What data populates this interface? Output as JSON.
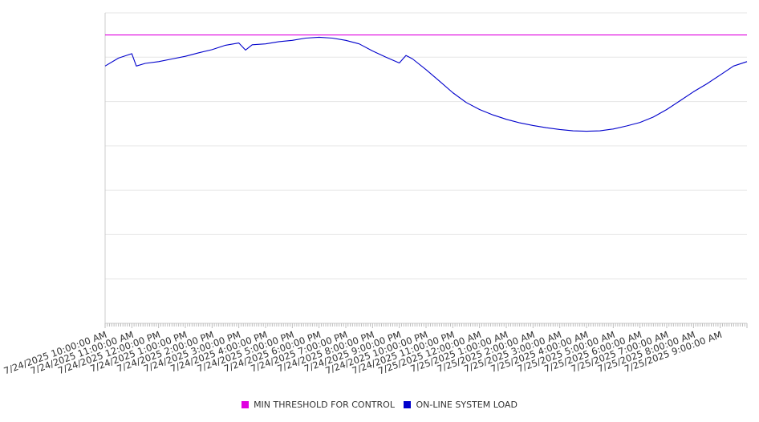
{
  "chart_data": {
    "type": "line",
    "title": "",
    "xlabel": "",
    "ylabel": "",
    "x_tick_labels": [
      "7/24/2025 10:00:00 AM",
      "7/24/2025 11:00:00 AM",
      "7/24/2025 12:00:00 PM",
      "7/24/2025 1:00:00 PM",
      "7/24/2025 2:00:00 PM",
      "7/24/2025 3:00:00 PM",
      "7/24/2025 4:00:00 PM",
      "7/24/2025 5:00:00 PM",
      "7/24/2025 6:00:00 PM",
      "7/24/2025 7:00:00 PM",
      "7/24/2025 8:00:00 PM",
      "7/24/2025 9:00:00 PM",
      "7/24/2025 10:00:00 PM",
      "7/24/2025 11:00:00 PM",
      "7/25/2025 12:00:00 AM",
      "7/25/2025 1:00:00 AM",
      "7/25/2025 2:00:00 AM",
      "7/25/2025 3:00:00 AM",
      "7/25/2025 4:00:00 AM",
      "7/25/2025 5:00:00 AM",
      "7/25/2025 6:00:00 AM",
      "7/25/2025 7:00:00 AM",
      "7/25/2025 8:00:00 AM",
      "7/25/2025 9:00:00 AM"
    ],
    "x_range": [
      "7/24/2025 10:00:00 AM",
      "7/25/2025 10:00:00 AM"
    ],
    "y_range": [
      0,
      7
    ],
    "y_tick_labels_shown": false,
    "grid": true,
    "legend_position": "bottom-center",
    "series": [
      {
        "name": "MIN THRESHOLD FOR CONTROL",
        "color": "#e000e0",
        "x": [
          "7/24/2025 10:00:00 AM",
          "7/25/2025 10:00:00 AM"
        ],
        "y": [
          6.5,
          6.5
        ]
      },
      {
        "name": "ON-LINE SYSTEM LOAD",
        "color": "#0000cc",
        "x": [
          "7/24/2025 10:00:00 AM",
          "7/24/2025 10:30:00 AM",
          "7/24/2025 11:00:00 AM",
          "7/24/2025 11:10:00 AM",
          "7/24/2025 11:30:00 AM",
          "7/24/2025 12:00:00 PM",
          "7/24/2025 12:30:00 PM",
          "7/24/2025 1:00:00 PM",
          "7/24/2025 1:30:00 PM",
          "7/24/2025 2:00:00 PM",
          "7/24/2025 2:30:00 PM",
          "7/24/2025 3:00:00 PM",
          "7/24/2025 3:15:00 PM",
          "7/24/2025 3:30:00 PM",
          "7/24/2025 4:00:00 PM",
          "7/24/2025 4:30:00 PM",
          "7/24/2025 5:00:00 PM",
          "7/24/2025 5:30:00 PM",
          "7/24/2025 6:00:00 PM",
          "7/24/2025 6:30:00 PM",
          "7/24/2025 7:00:00 PM",
          "7/24/2025 7:30:00 PM",
          "7/24/2025 8:00:00 PM",
          "7/24/2025 8:30:00 PM",
          "7/24/2025 9:00:00 PM",
          "7/24/2025 9:15:00 PM",
          "7/24/2025 9:30:00 PM",
          "7/24/2025 10:00:00 PM",
          "7/24/2025 10:30:00 PM",
          "7/24/2025 11:00:00 PM",
          "7/24/2025 11:30:00 PM",
          "7/25/2025 12:00:00 AM",
          "7/25/2025 12:30:00 AM",
          "7/25/2025 1:00:00 AM",
          "7/25/2025 1:30:00 AM",
          "7/25/2025 2:00:00 AM",
          "7/25/2025 2:30:00 AM",
          "7/25/2025 3:00:00 AM",
          "7/25/2025 3:30:00 AM",
          "7/25/2025 4:00:00 AM",
          "7/25/2025 4:30:00 AM",
          "7/25/2025 5:00:00 AM",
          "7/25/2025 5:30:00 AM",
          "7/25/2025 6:00:00 AM",
          "7/25/2025 6:30:00 AM",
          "7/25/2025 7:00:00 AM",
          "7/25/2025 7:30:00 AM",
          "7/25/2025 8:00:00 AM",
          "7/25/2025 8:30:00 AM",
          "7/25/2025 9:00:00 AM",
          "7/25/2025 9:30:00 AM",
          "7/25/2025 10:00:00 AM"
        ],
        "y": [
          5.8,
          5.98,
          6.08,
          5.8,
          5.86,
          5.9,
          5.96,
          6.02,
          6.1,
          6.17,
          6.27,
          6.32,
          6.16,
          6.28,
          6.3,
          6.35,
          6.38,
          6.43,
          6.45,
          6.43,
          6.38,
          6.3,
          6.14,
          6.0,
          5.87,
          6.04,
          5.96,
          5.72,
          5.46,
          5.2,
          4.98,
          4.82,
          4.7,
          4.6,
          4.52,
          4.46,
          4.41,
          4.37,
          4.34,
          4.33,
          4.34,
          4.38,
          4.45,
          4.53,
          4.65,
          4.82,
          5.02,
          5.22,
          5.4,
          5.6,
          5.8,
          5.9
        ]
      }
    ]
  },
  "legend": {
    "items": [
      {
        "label": "MIN THRESHOLD FOR CONTROL",
        "color": "#e000e0"
      },
      {
        "label": "ON-LINE SYSTEM LOAD",
        "color": "#0000cc"
      }
    ]
  }
}
